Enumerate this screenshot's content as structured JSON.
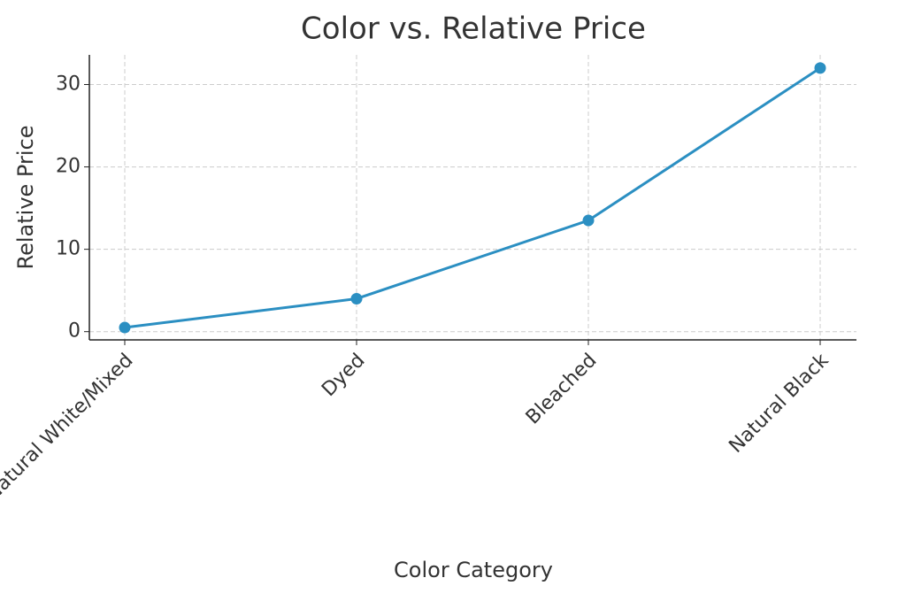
{
  "chart_data": {
    "type": "line",
    "title": "Color vs. Relative Price",
    "x_label": "Color Category",
    "y_label": "Relative Price",
    "categories": [
      "Natural White/Mixed",
      "Dyed",
      "Bleached",
      "Natural Black"
    ],
    "values": [
      0.5,
      4,
      13.5,
      32
    ],
    "color": "#2b8fc2",
    "ylim": [
      -1,
      33.6
    ],
    "yticks": [
      0,
      10,
      20,
      30
    ],
    "grid": true
  }
}
